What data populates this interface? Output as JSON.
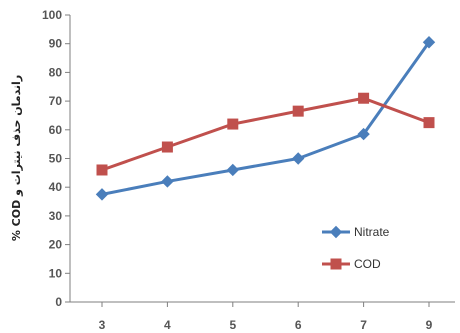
{
  "chart_data": {
    "type": "line",
    "categories": [
      "3",
      "4",
      "5",
      "6",
      "7",
      "9"
    ],
    "series": [
      {
        "name": "Nitrate",
        "values": [
          37.5,
          42,
          46,
          50,
          58.5,
          90.5
        ],
        "color": "#4a7ebb",
        "marker": "diamond"
      },
      {
        "name": "COD",
        "values": [
          46,
          54,
          62,
          66.5,
          71,
          62.5
        ],
        "color": "#c0504d",
        "marker": "square"
      }
    ],
    "xlabel": "",
    "ylabel": "راندمان حذف نیترات و COD %",
    "ylim": [
      0,
      100
    ],
    "yticks": [
      0,
      10,
      20,
      30,
      40,
      50,
      60,
      70,
      80,
      90,
      100
    ],
    "grid": false,
    "legend_position": "bottom-right"
  }
}
